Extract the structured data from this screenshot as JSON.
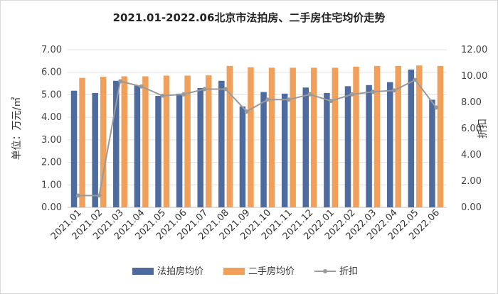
{
  "chart_data": {
    "type": "bar",
    "title": "2021.01-2022.06北京市法拍房、二手房住宅均价走势",
    "categories": [
      "2021.01",
      "2021.02",
      "2021.03",
      "2021.04",
      "2021.05",
      "2021.06",
      "2021.07",
      "2021.08",
      "2021.09",
      "2021.10",
      "2021.11",
      "2021.12",
      "2022.01",
      "2022.02",
      "2022.03",
      "2022.04",
      "2022.05",
      "2022.06"
    ],
    "ylabel": "单位：万元/㎡",
    "ylabel_right": "折扣",
    "ylim": [
      0,
      7
    ],
    "ylim_right": [
      0,
      12
    ],
    "yticks": [
      "0.00",
      "1.00",
      "2.00",
      "3.00",
      "4.00",
      "5.00",
      "6.00",
      "7.00"
    ],
    "yticks_right": [
      "0.00",
      "2.00",
      "4.00",
      "6.00",
      "8.00",
      "10.00",
      "12.00"
    ],
    "grid": true,
    "legend_position": "bottom",
    "series": [
      {
        "name": "法拍房均价",
        "type": "bar",
        "axis": "left",
        "color": "#4e6b9f",
        "values": [
          5.18,
          5.08,
          5.62,
          5.42,
          4.95,
          5.05,
          5.3,
          5.62,
          4.48,
          5.12,
          5.05,
          5.32,
          5.08,
          5.38,
          5.43,
          5.56,
          6.12,
          4.78
        ]
      },
      {
        "name": "二手房均价",
        "type": "bar",
        "axis": "left",
        "color": "#f0a05a",
        "values": [
          5.75,
          5.8,
          5.82,
          5.82,
          5.85,
          5.85,
          5.86,
          6.28,
          6.22,
          6.2,
          6.2,
          6.2,
          6.2,
          6.25,
          6.28,
          6.28,
          6.3,
          6.28
        ]
      },
      {
        "name": "折扣",
        "type": "line",
        "axis": "right",
        "color": "#9a9a9a",
        "values": [
          0.9,
          0.9,
          9.6,
          9.2,
          8.5,
          8.6,
          9.0,
          9.0,
          7.3,
          8.2,
          8.2,
          8.6,
          8.1,
          8.6,
          8.8,
          8.9,
          9.7,
          7.6
        ]
      }
    ]
  }
}
